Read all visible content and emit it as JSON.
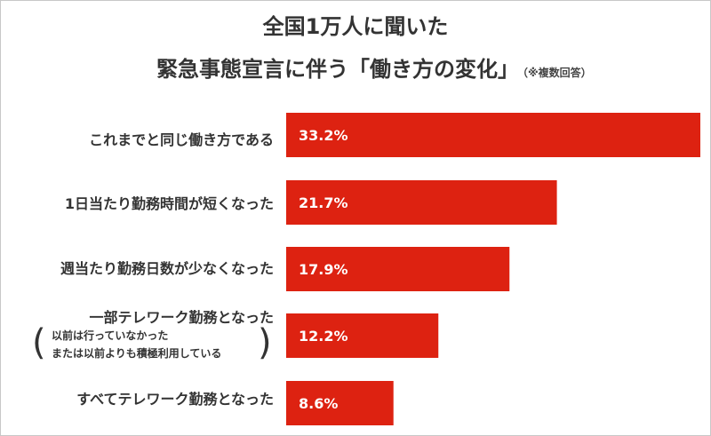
{
  "title_line1": "全国1万人に聞いた",
  "title_line2": "緊急事態宣言に伴う「働き方の変化」",
  "title_note": "（※複数回答）",
  "colors": {
    "bar": "#dd2211",
    "text": "#333333"
  },
  "chart_data": {
    "type": "bar",
    "orientation": "horizontal",
    "title": "全国1万人に聞いた 緊急事態宣言に伴う「働き方の変化」",
    "note": "（※複数回答）",
    "categories": [
      "これまでと同じ働き方である",
      "1日当たり勤務時間が短くなった",
      "週当たり勤務日数が少なくなった",
      "一部テレワーク勤務となった",
      "すべてテレワーク勤務となった"
    ],
    "category_sub": {
      "3": [
        "以前は行っていなかった",
        "または以前よりも積極利用している"
      ]
    },
    "values": [
      33.2,
      21.7,
      17.9,
      12.2,
      8.6
    ],
    "value_labels": [
      "33.2%",
      "21.7%",
      "17.9%",
      "12.2%",
      "8.6%"
    ],
    "unit": "%",
    "xlim": [
      0,
      33.2
    ],
    "grid": false,
    "legend": "none"
  }
}
